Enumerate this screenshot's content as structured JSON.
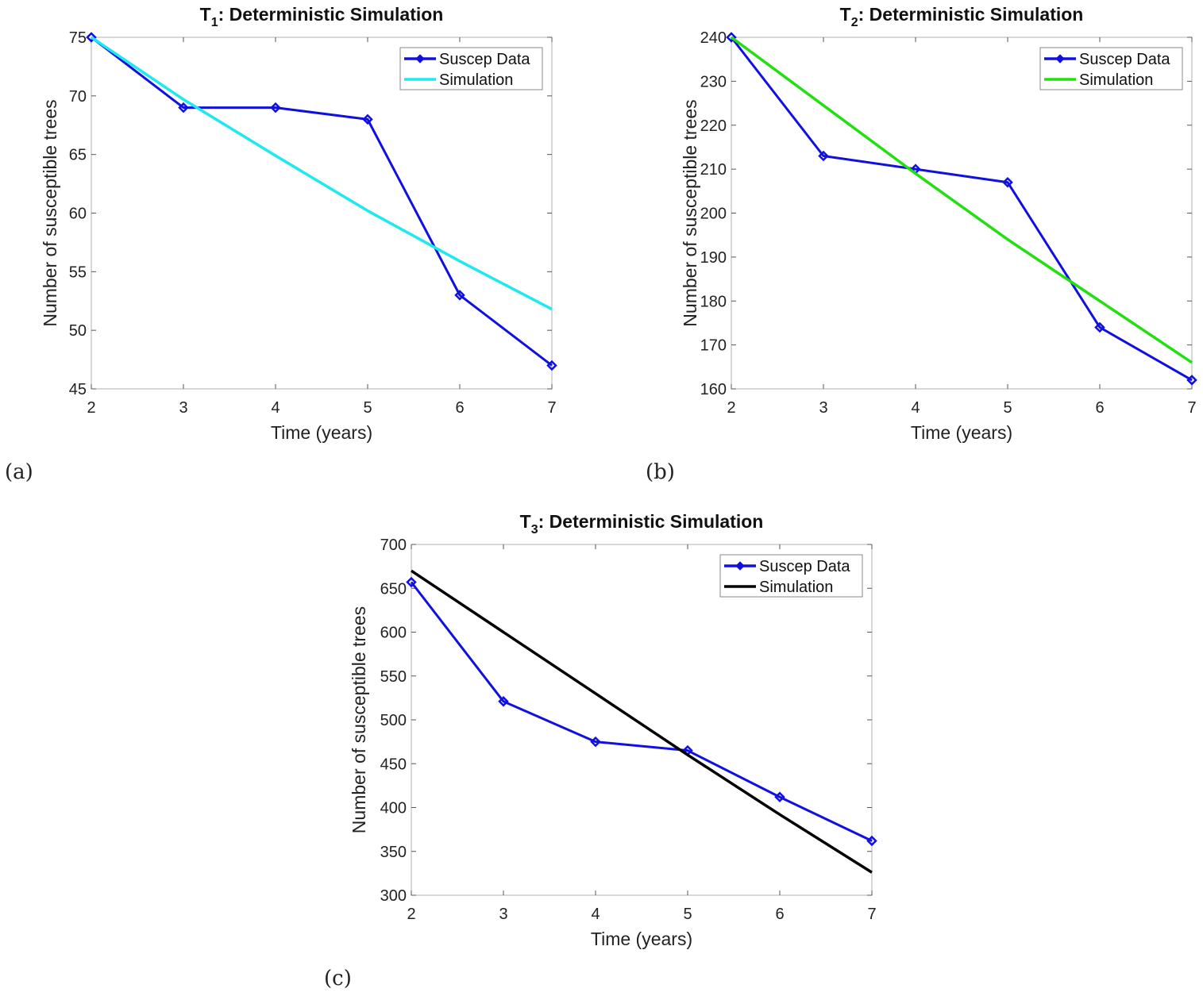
{
  "panel_labels": [
    "(a)",
    "(b)",
    "(c)"
  ],
  "chart_data": [
    {
      "type": "line",
      "title": {
        "prefix": "T",
        "sub": "1",
        "suffix": ": Deterministic Simulation"
      },
      "xlabel": "Time (years)",
      "ylabel": "Number of susceptible trees",
      "xlim": [
        2,
        7
      ],
      "ylim": [
        45,
        75
      ],
      "xticks": [
        2,
        3,
        4,
        5,
        6,
        7
      ],
      "yticks": [
        45,
        50,
        55,
        60,
        65,
        70,
        75
      ],
      "grid": false,
      "legend": "top-right",
      "x": [
        2,
        3,
        4,
        5,
        6,
        7
      ],
      "series": [
        {
          "name": "Suscep Data",
          "values": [
            75,
            69,
            69,
            68,
            53,
            47
          ],
          "color": "#1010e0",
          "marker": "diamond"
        },
        {
          "name": "Simulation",
          "values": [
            75,
            69.7,
            64.9,
            60.2,
            55.9,
            51.8
          ],
          "color": "#1ee8f0",
          "marker": "none"
        }
      ]
    },
    {
      "type": "line",
      "title": {
        "prefix": "T",
        "sub": "2",
        "suffix": ": Deterministic Simulation"
      },
      "xlabel": "Time (years)",
      "ylabel": "Number of susceptible trees",
      "xlim": [
        2,
        7
      ],
      "ylim": [
        160,
        240
      ],
      "xticks": [
        2,
        3,
        4,
        5,
        6,
        7
      ],
      "yticks": [
        160,
        170,
        180,
        190,
        200,
        210,
        220,
        230,
        240
      ],
      "grid": false,
      "legend": "top-right",
      "x": [
        2,
        3,
        4,
        5,
        6,
        7
      ],
      "series": [
        {
          "name": "Suscep Data",
          "values": [
            240,
            213,
            210,
            207,
            174,
            162
          ],
          "color": "#1010e0",
          "marker": "diamond"
        },
        {
          "name": "Simulation",
          "values": [
            240,
            224.5,
            209,
            194,
            180,
            166
          ],
          "color": "#22e010",
          "marker": "none"
        }
      ]
    },
    {
      "type": "line",
      "title": {
        "prefix": "T",
        "sub": "3",
        "suffix": ": Deterministic Simulation"
      },
      "xlabel": "Time (years)",
      "ylabel": "Number of susceptible trees",
      "xlim": [
        2,
        7
      ],
      "ylim": [
        300,
        700
      ],
      "xticks": [
        2,
        3,
        4,
        5,
        6,
        7
      ],
      "yticks": [
        300,
        350,
        400,
        450,
        500,
        550,
        600,
        650,
        700
      ],
      "grid": false,
      "legend": "top-right",
      "x": [
        2,
        3,
        4,
        5,
        6,
        7
      ],
      "series": [
        {
          "name": "Suscep Data",
          "values": [
            657,
            521,
            475,
            465,
            412,
            362
          ],
          "color": "#1010e0",
          "marker": "diamond"
        },
        {
          "name": "Simulation",
          "values": [
            670,
            600,
            530,
            460,
            392,
            326
          ],
          "color": "#000000",
          "marker": "none"
        }
      ]
    }
  ]
}
